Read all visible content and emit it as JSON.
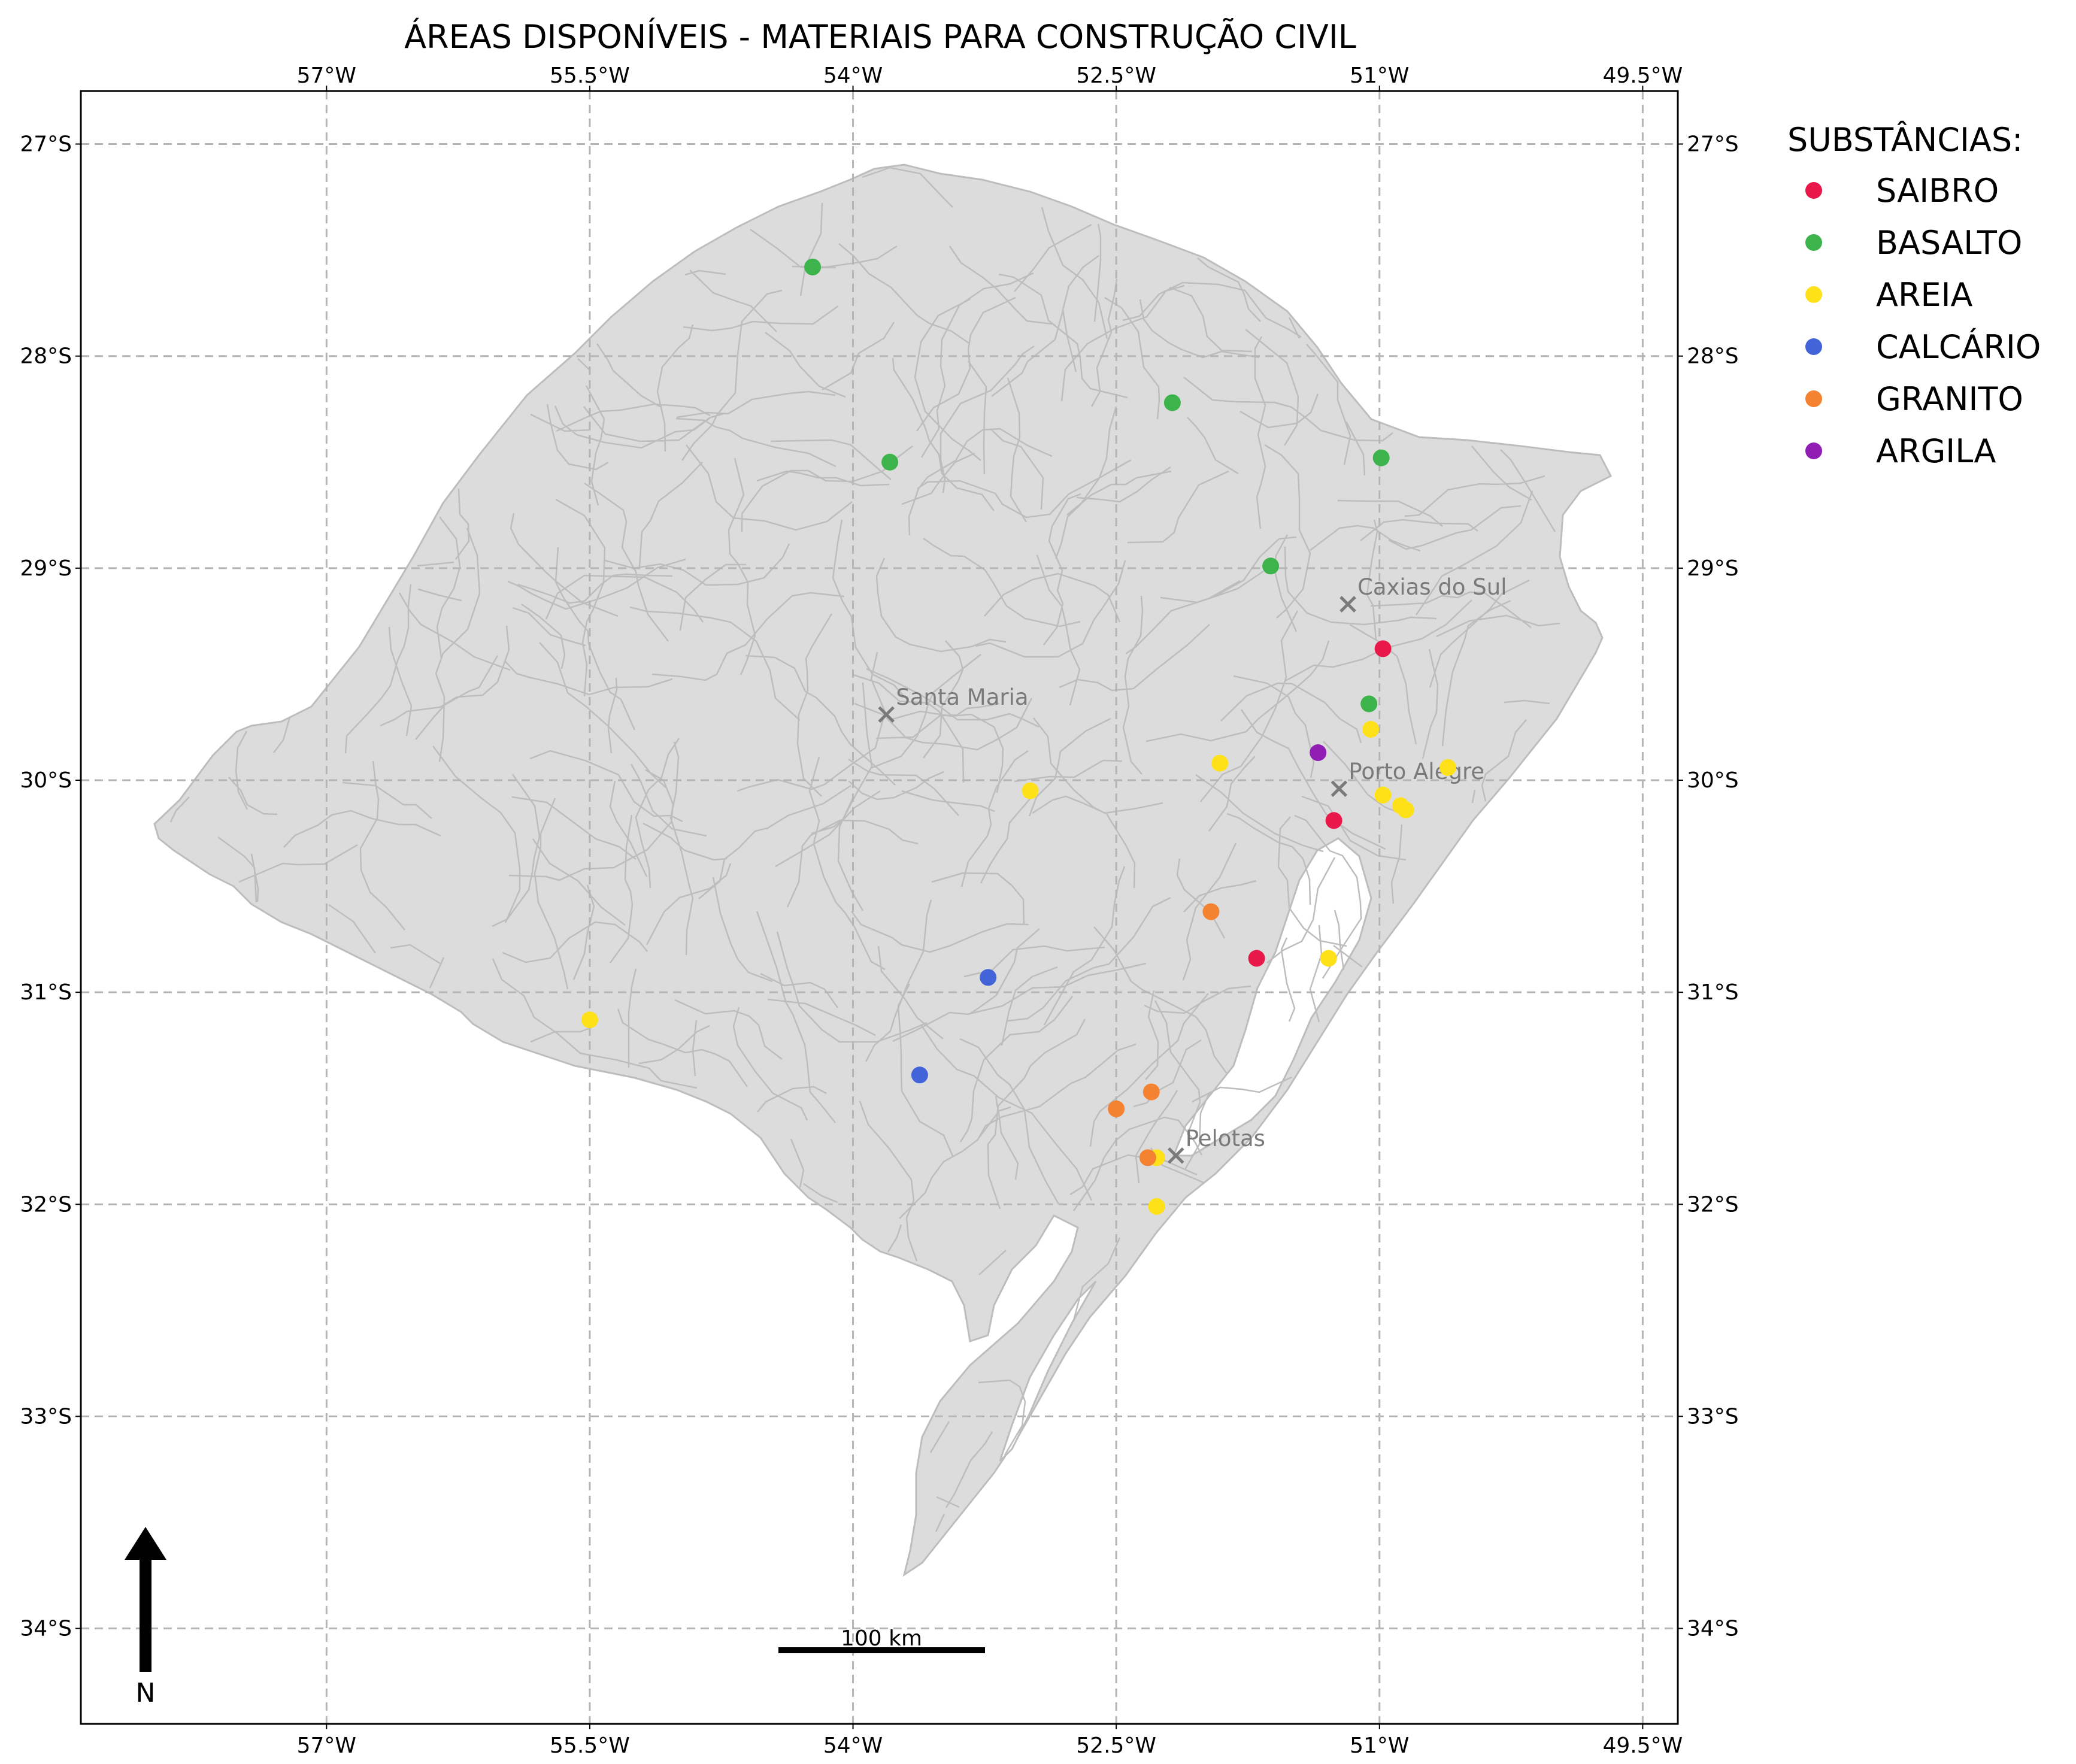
{
  "title": "ÁREAS DISPONÍVEIS - MATERIAIS PARA CONSTRUÇÃO CIVIL",
  "axes": {
    "lon_range": [
      -58.4,
      -49.3
    ],
    "lat_range": [
      -34.45,
      -26.75
    ],
    "lon_ticks": [
      -57,
      -55.5,
      -54,
      -52.5,
      -51,
      -49.5
    ],
    "lon_tick_labels": [
      "57°W",
      "55.5°W",
      "54°W",
      "52.5°W",
      "51°W",
      "49.5°W"
    ],
    "lat_ticks": [
      -27,
      -28,
      -29,
      -30,
      -31,
      -32,
      -33,
      -34
    ],
    "lat_tick_labels": [
      "27°S",
      "28°S",
      "29°S",
      "30°S",
      "31°S",
      "32°S",
      "33°S",
      "34°S"
    ],
    "grid": true
  },
  "colors": {
    "land_fill": "#dcdcdc",
    "boundary": "#bdbdbd",
    "city_marker": "#7a7a7a",
    "SAIBRO": "#e8194a",
    "BASALTO": "#3cb44b",
    "AREIA": "#ffe119",
    "CALCÁRIO": "#4363d8",
    "GRANITO": "#f58231",
    "ARGILA": "#911eb4"
  },
  "legend": {
    "title": "SUBSTÂNCIAS:",
    "position": "outside right, top",
    "items": [
      {
        "label": "SAIBRO",
        "color": "#e8194a"
      },
      {
        "label": "BASALTO",
        "color": "#3cb44b"
      },
      {
        "label": "AREIA",
        "color": "#ffe119"
      },
      {
        "label": "CALCÁRIO",
        "color": "#4363d8"
      },
      {
        "label": "GRANITO",
        "color": "#f58231"
      },
      {
        "label": "ARGILA",
        "color": "#911eb4"
      }
    ]
  },
  "cities": [
    {
      "name": "Caxias do Sul",
      "lon": -51.18,
      "lat": -29.17
    },
    {
      "name": "Santa Maria",
      "lon": -53.81,
      "lat": -29.69
    },
    {
      "name": "Porto Alegre",
      "lon": -51.23,
      "lat": -30.04
    },
    {
      "name": "Pelotas",
      "lon": -52.16,
      "lat": -31.77
    }
  ],
  "scale_bar": {
    "label": "100 km"
  },
  "north_arrow": {
    "label": "N"
  },
  "chart_data": {
    "type": "scatter",
    "title": "ÁREAS DISPONÍVEIS - MATERIAIS PARA CONSTRUÇÃO CIVIL",
    "xlabel": "",
    "ylabel": "",
    "xlim": [
      -58.4,
      -49.3
    ],
    "ylim": [
      -34.45,
      -26.75
    ],
    "grid": true,
    "legend": "outside top-right",
    "series": [
      {
        "name": "SAIBRO",
        "color": "#e8194a",
        "points": [
          [
            -50.98,
            -29.38
          ],
          [
            -51.26,
            -30.19
          ],
          [
            -51.7,
            -30.84
          ]
        ]
      },
      {
        "name": "BASALTO",
        "color": "#3cb44b",
        "points": [
          [
            -54.23,
            -27.58
          ],
          [
            -53.79,
            -28.5
          ],
          [
            -52.18,
            -28.22
          ],
          [
            -50.99,
            -28.48
          ],
          [
            -51.62,
            -28.99
          ],
          [
            -51.06,
            -29.64
          ]
        ]
      },
      {
        "name": "AREIA",
        "color": "#ffe119",
        "points": [
          [
            -51.05,
            -29.76
          ],
          [
            -50.61,
            -29.94
          ],
          [
            -51.91,
            -29.92
          ],
          [
            -52.99,
            -30.05
          ],
          [
            -50.98,
            -30.07
          ],
          [
            -50.88,
            -30.12
          ],
          [
            -50.85,
            -30.14
          ],
          [
            -51.29,
            -30.84
          ],
          [
            -55.5,
            -31.13
          ],
          [
            -52.27,
            -31.78
          ],
          [
            -52.27,
            -32.01
          ]
        ]
      },
      {
        "name": "CALCÁRIO",
        "color": "#4363d8",
        "points": [
          [
            -53.23,
            -30.93
          ],
          [
            -53.62,
            -31.39
          ]
        ]
      },
      {
        "name": "GRANITO",
        "color": "#f58231",
        "points": [
          [
            -51.96,
            -30.62
          ],
          [
            -52.3,
            -31.47
          ],
          [
            -52.5,
            -31.55
          ],
          [
            -52.32,
            -31.78
          ]
        ]
      },
      {
        "name": "ARGILA",
        "color": "#911eb4",
        "points": [
          [
            -51.35,
            -29.87
          ]
        ]
      }
    ]
  }
}
